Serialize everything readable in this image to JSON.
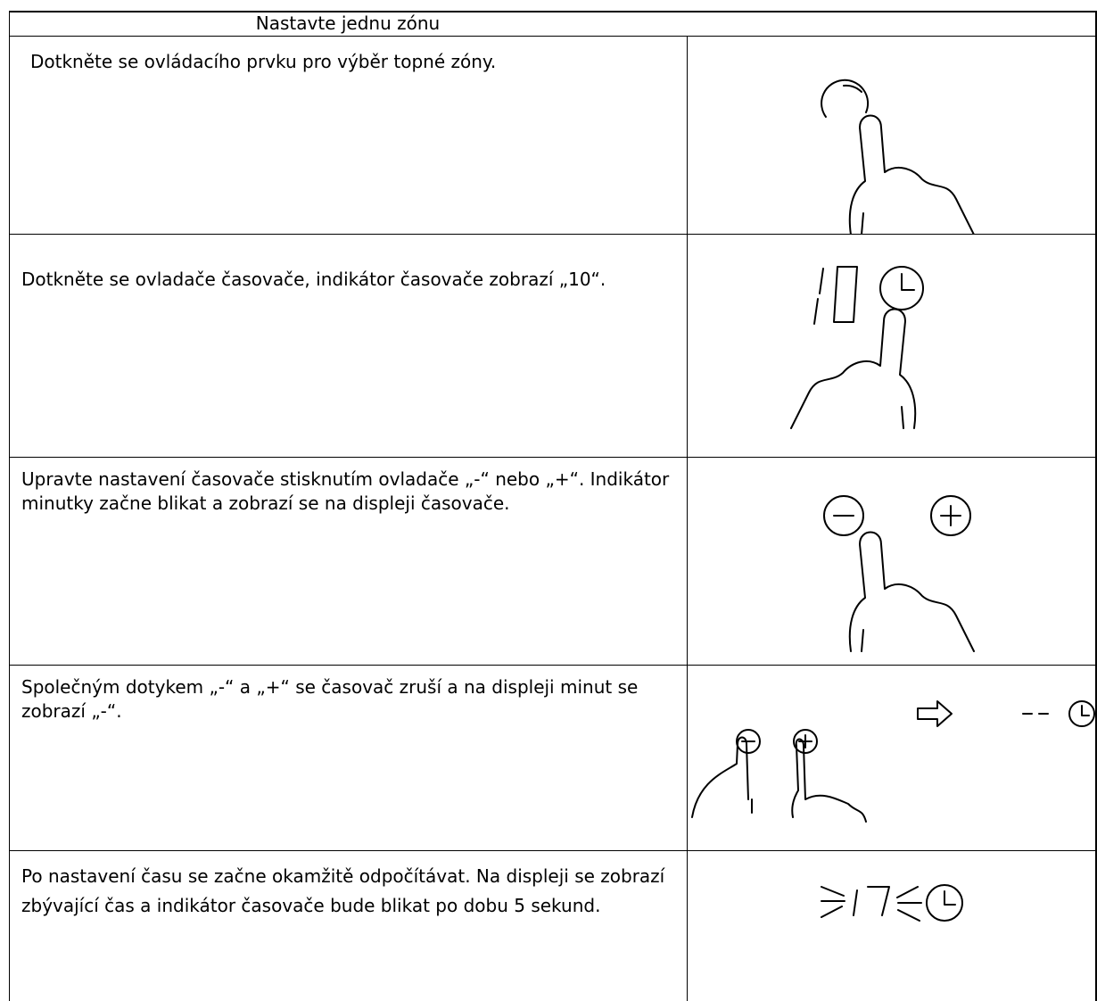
{
  "title": "Nastavte jednu zónu",
  "rows": [
    {
      "text": "Dotkněte se ovládacího prvku pro výběr topné zóny."
    },
    {
      "text": "Dotkněte se ovladače časovače, indikátor časovače zobrazí „10“."
    },
    {
      "text": "Upravte nastavení časovače stisknutím ovladače „-“ nebo „+“. Indikátor minutky začne blikat a zobrazí se na displeji časovače."
    },
    {
      "text": "Společným dotykem „-“ a „+“ se časovač zruší a na displeji minut se zobrazí „-“."
    },
    {
      "text": "Po nastavení času se začne okamžitě odpočítávat. Na displeji se zobrazí zbývající čas a indikátor časovače bude blikat po dobu 5 sekund."
    }
  ]
}
